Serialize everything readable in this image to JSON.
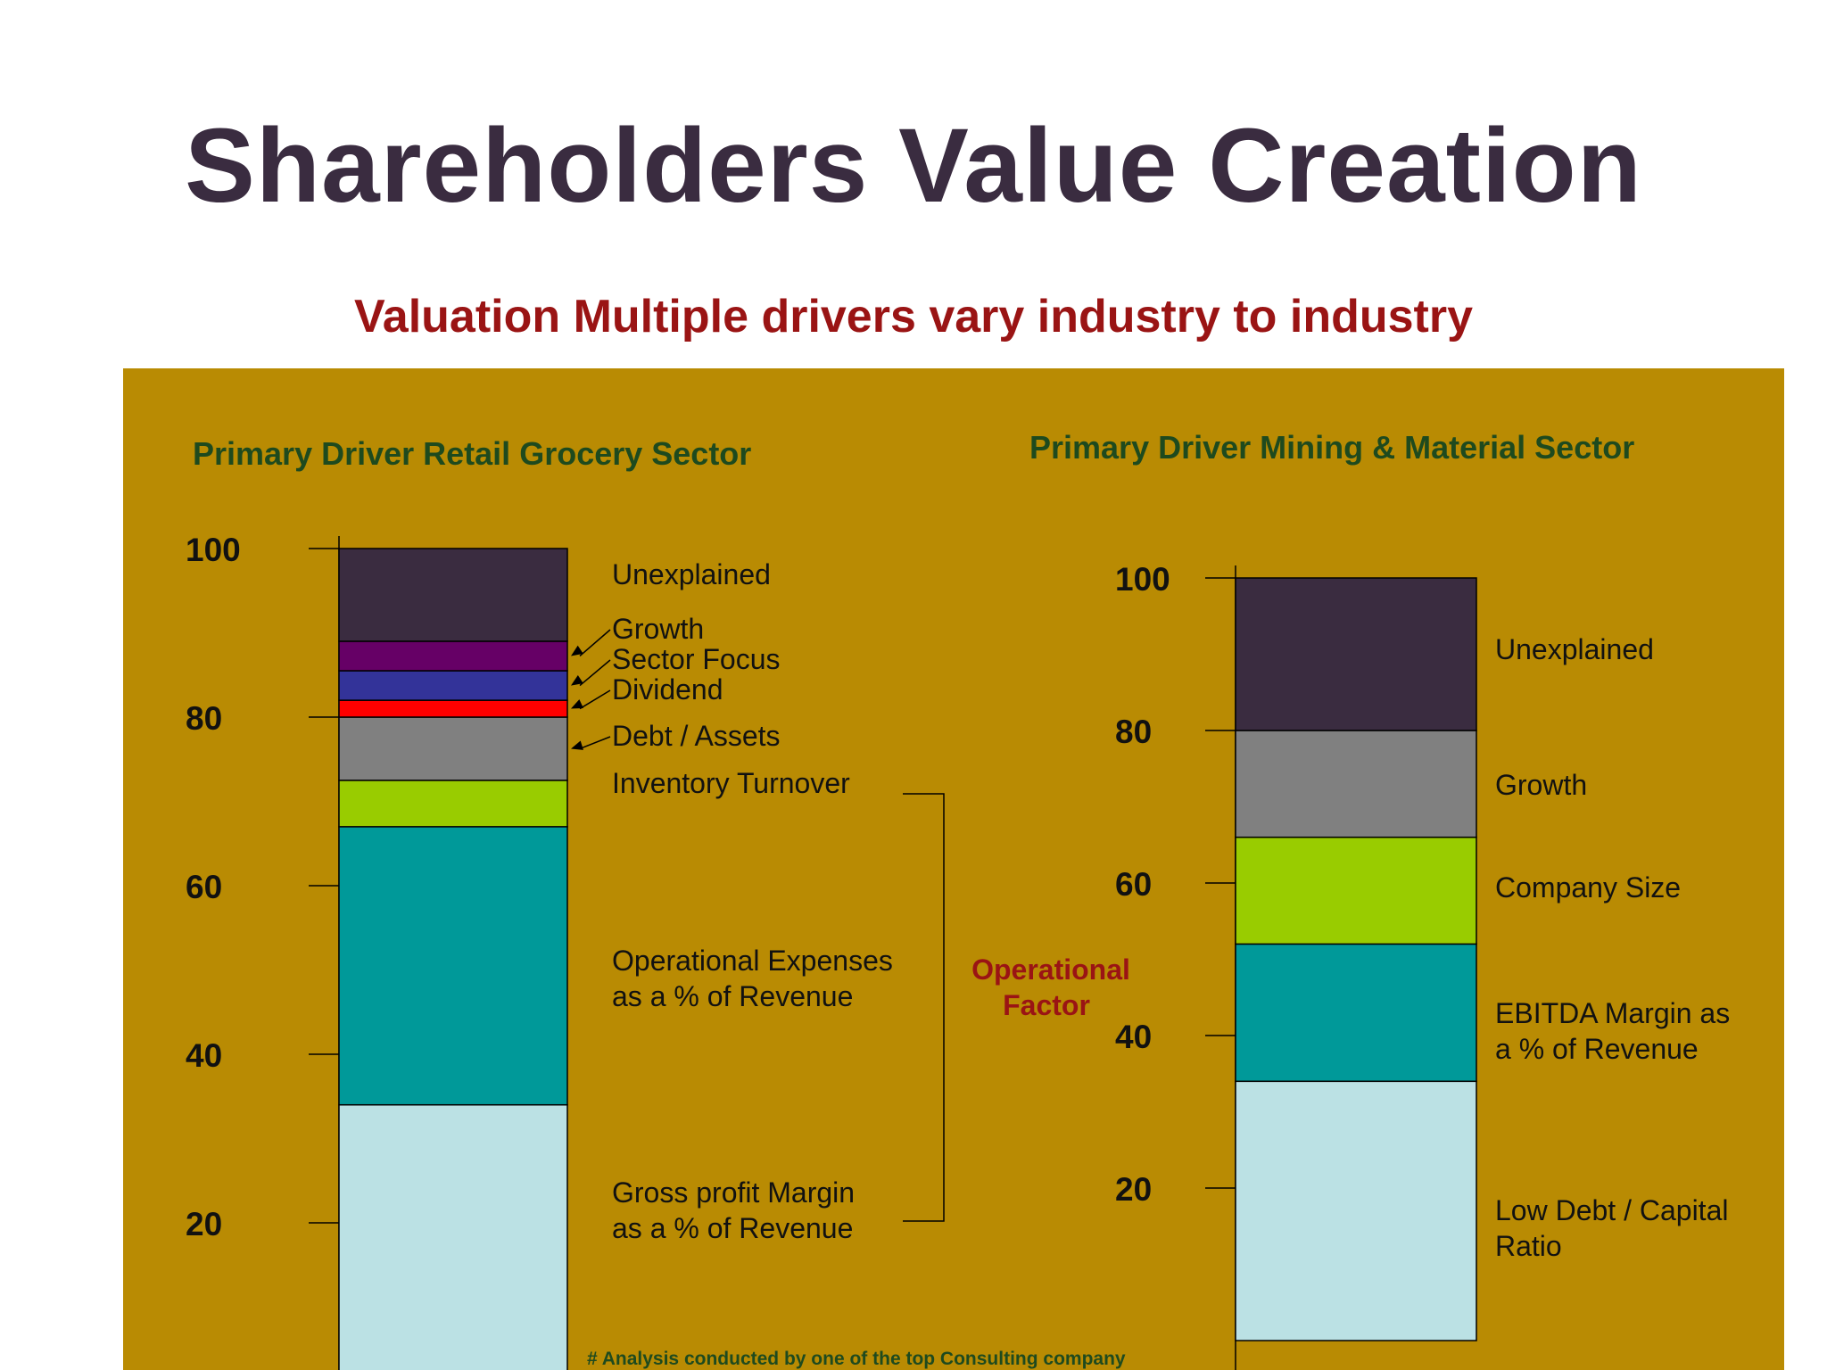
{
  "slide": {
    "title": "Shareholders Value Creation",
    "subtitle": "Valuation Multiple drivers vary industry to industry",
    "panel_color": "#b98b03"
  },
  "chart_data": [
    {
      "type": "bar",
      "title": "Primary Driver Retail Grocery Sector",
      "yticks": [
        20,
        40,
        60,
        80,
        100
      ],
      "ylim": [
        0,
        100
      ],
      "segments": [
        {
          "name": "Gross profit Margin as a % of Revenue",
          "label_lines": [
            "Gross profit Margin",
            "as a % of Revenue"
          ],
          "from": 0,
          "to": 34,
          "color": "#bbe1e4"
        },
        {
          "name": "Operational Expenses as a % of Revenue",
          "label_lines": [
            "Operational Expenses",
            "as a % of Revenue"
          ],
          "from": 34,
          "to": 67,
          "color": "#009999"
        },
        {
          "name": "Inventory Turnover",
          "label_lines": [
            "Inventory Turnover"
          ],
          "from": 67,
          "to": 72.5,
          "color": "#99cc00"
        },
        {
          "name": "Debt / Assets",
          "label_lines": [
            "Debt / Assets"
          ],
          "from": 72.5,
          "to": 80,
          "color": "#808080"
        },
        {
          "name": "Dividend",
          "label_lines": [
            "Dividend"
          ],
          "from": 80,
          "to": 82,
          "color": "#ff0000"
        },
        {
          "name": "Sector Focus",
          "label_lines": [
            "Sector Focus"
          ],
          "from": 82,
          "to": 85.5,
          "color": "#333399"
        },
        {
          "name": "Growth",
          "label_lines": [
            "Growth"
          ],
          "from": 85.5,
          "to": 89,
          "color": "#660066"
        },
        {
          "name": "Unexplained",
          "label_lines": [
            "Unexplained"
          ],
          "from": 89,
          "to": 100,
          "color": "#3a2c40"
        }
      ],
      "group_annotation": {
        "label_lines": [
          "Operational",
          "Factor"
        ],
        "covers": [
          "Gross profit Margin as a % of Revenue",
          "Operational Expenses as a % of Revenue",
          "Inventory Turnover"
        ]
      }
    },
    {
      "type": "bar",
      "title": "Primary Driver Mining &  Material Sector",
      "yticks": [
        20,
        40,
        60,
        80,
        100
      ],
      "ylim": [
        0,
        100
      ],
      "segments": [
        {
          "name": "Low Debt / Capital Ratio",
          "label_lines": [
            "Low Debt / Capital",
            "Ratio"
          ],
          "from": 0,
          "to": 34,
          "color": "#bbe1e4"
        },
        {
          "name": "EBITDA Margin as a % of Revenue",
          "label_lines": [
            "EBITDA Margin as",
            "a % of Revenue"
          ],
          "from": 34,
          "to": 52,
          "color": "#009999"
        },
        {
          "name": "Company Size",
          "label_lines": [
            "Company Size"
          ],
          "from": 52,
          "to": 66,
          "color": "#99cc00"
        },
        {
          "name": "Growth",
          "label_lines": [
            "Growth"
          ],
          "from": 66,
          "to": 80,
          "color": "#808080"
        },
        {
          "name": "Unexplained",
          "label_lines": [
            "Unexplained"
          ],
          "from": 80,
          "to": 100,
          "color": "#3a2c40"
        }
      ]
    }
  ],
  "footnote": "# Analysis conducted by one of the top Consulting company"
}
